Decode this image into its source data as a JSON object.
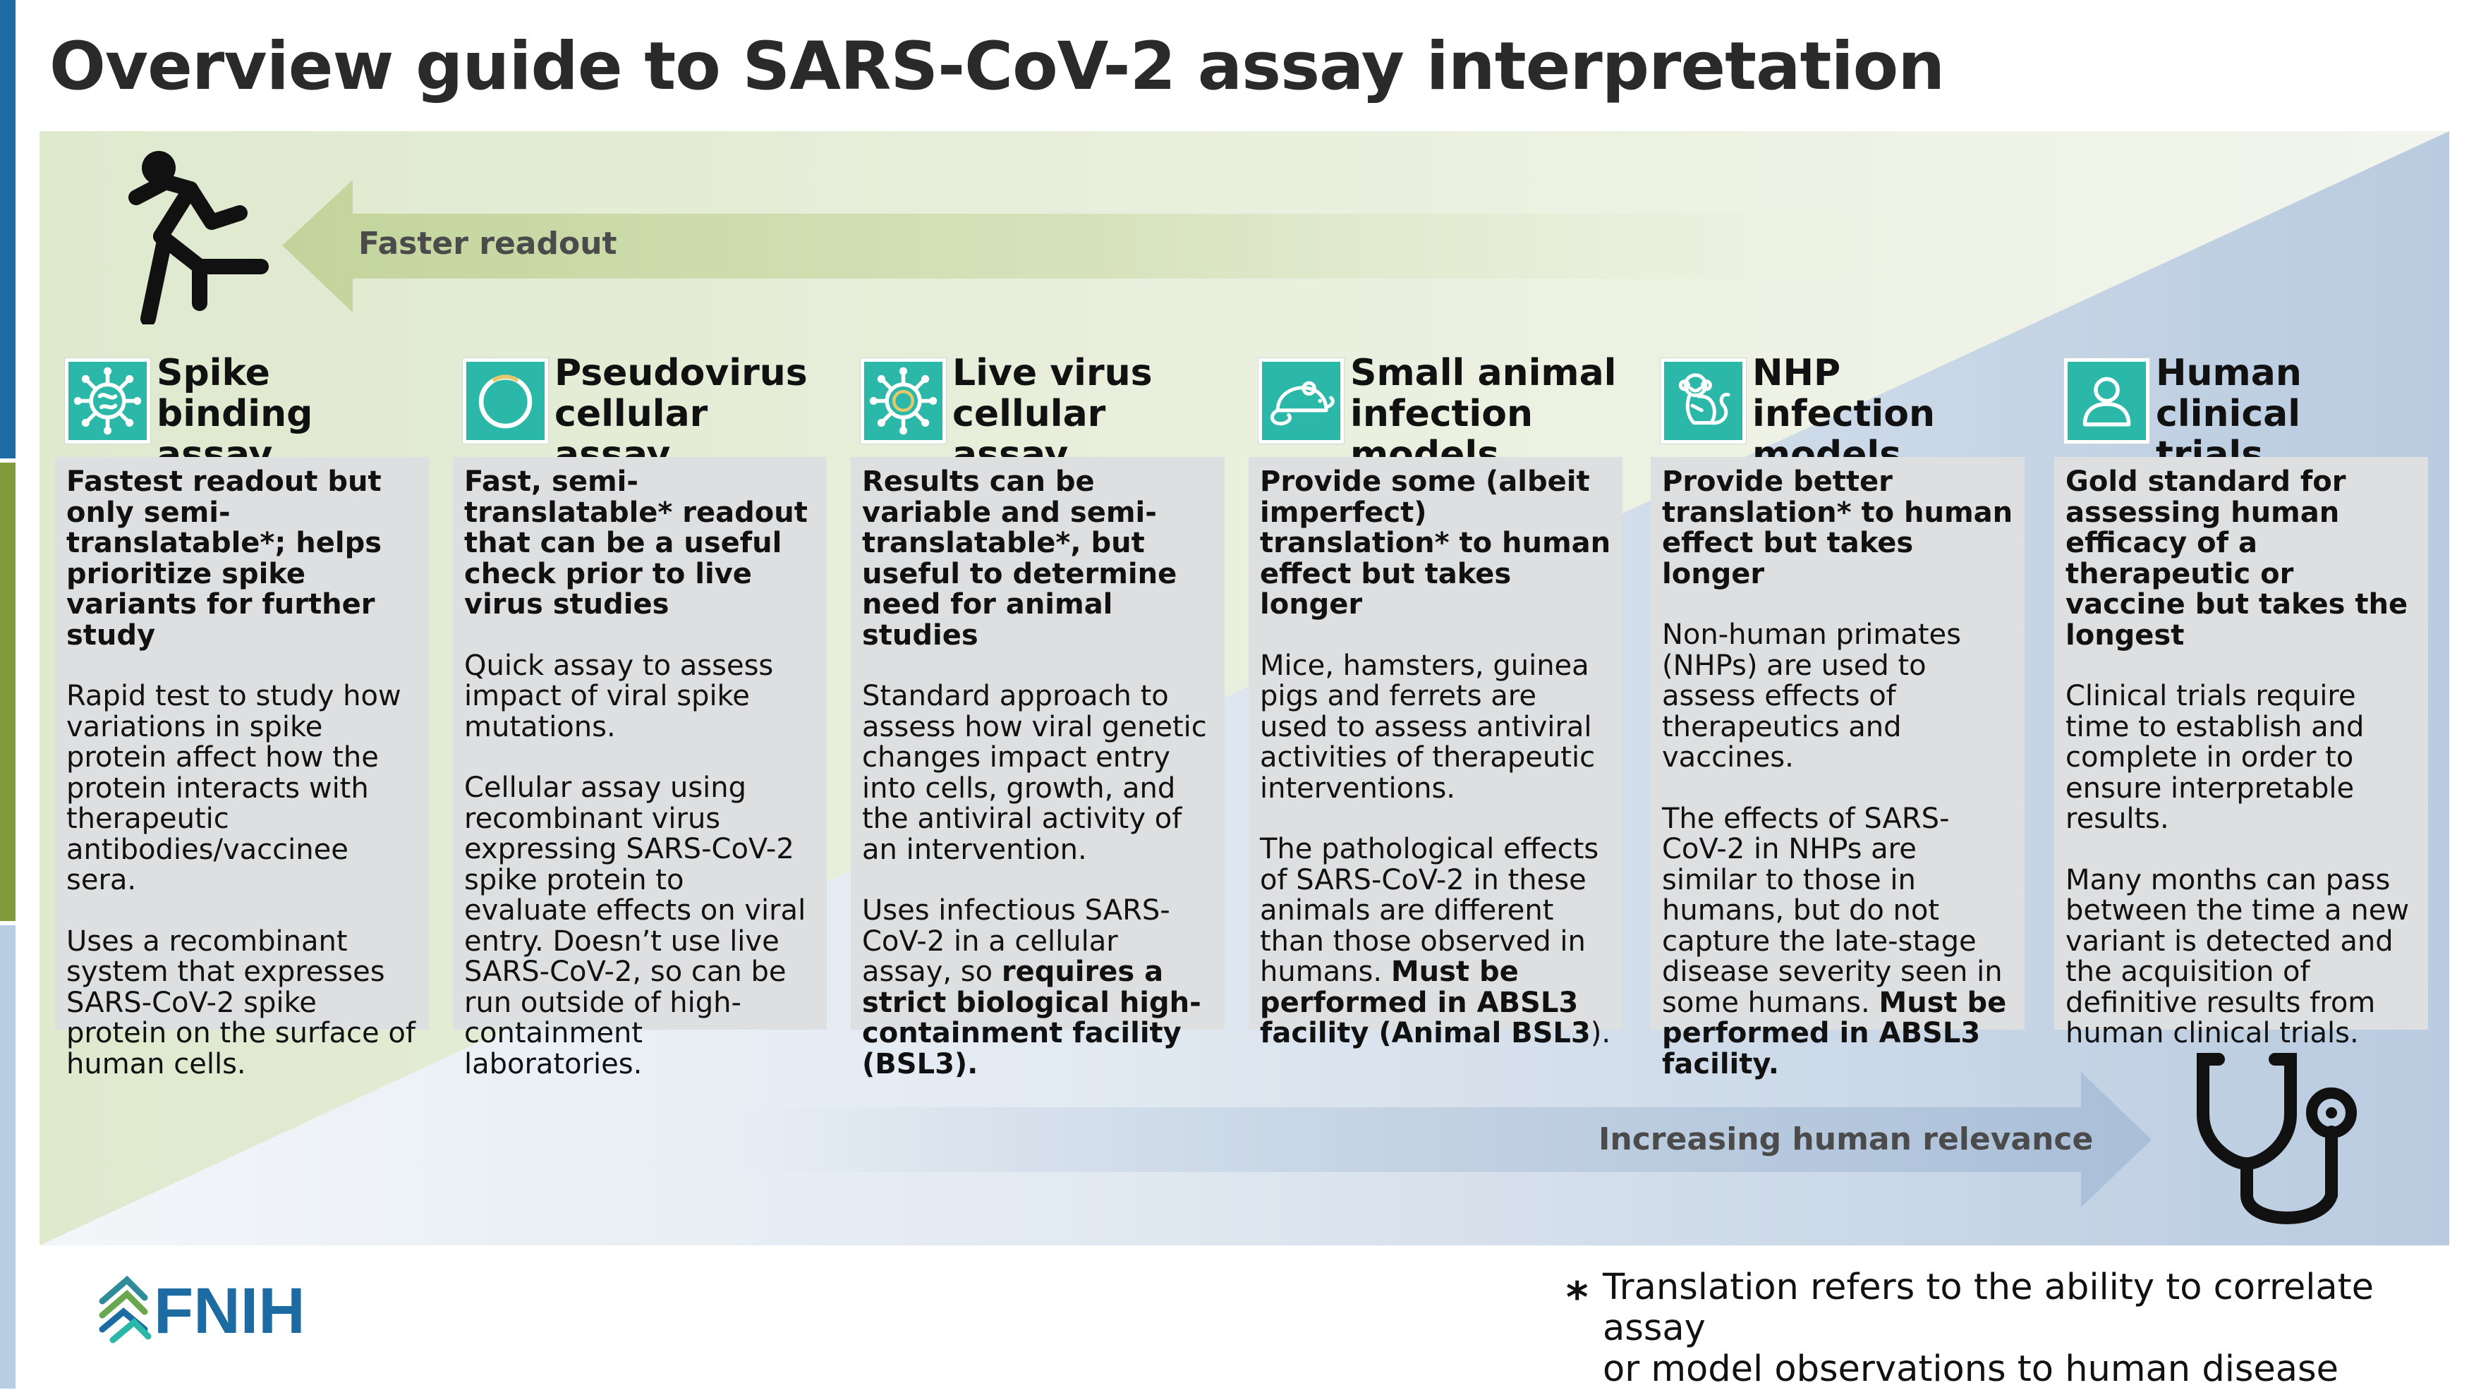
{
  "title": "Overview guide to SARS-CoV-2 assay interpretation",
  "colors": {
    "edge_blue": "#1d6ba3",
    "edge_green": "#7f9b3c",
    "edge_lightblue": "#b7cde3",
    "background_green": "#e6eed7",
    "background_blue": "#bfcfe2",
    "icon_teal": "#2cb8a8",
    "card_gray": "#dedfe0"
  },
  "arrows": {
    "left": {
      "label": "Faster readout",
      "icon": "running-person-icon"
    },
    "right": {
      "label": "Increasing human relevance",
      "icon": "stethoscope-icon"
    }
  },
  "columns": [
    {
      "icon": "coronavirus-icon",
      "title": "Spike binding\nassay",
      "lead": "Fastest readout but only semi-translatable*; helps prioritize spike variants for further study",
      "p1": "Rapid test to study how variations in spike protein affect how the protein interacts with therapeutic antibodies/vaccinee sera.",
      "p2": "Uses a recombinant system that expresses SARS-CoV-2 spike protein on the surface of human cells."
    },
    {
      "icon": "pseudovirus-icon",
      "title": "Pseudovirus\ncellular assay",
      "lead": "Fast, semi-translatable* readout that can be a useful check prior to live virus studies",
      "p1": "Quick assay to assess impact of viral spike mutations.",
      "p2": "Cellular assay using recombinant virus expressing SARS-CoV-2 spike protein to evaluate effects on viral entry. Doesn’t use live SARS-CoV-2, so can be run outside of high-containment laboratories."
    },
    {
      "icon": "live-virus-icon",
      "title": "Live virus\ncellular assay",
      "lead": "Results can be variable and semi-translatable*, but useful to determine need for animal studies",
      "p1": "Standard approach to assess how viral genetic changes impact entry into cells, growth, and the antiviral activity of an intervention.",
      "p2": "Uses infectious SARS-CoV-2 in a cellular assay, so ",
      "p2_bold": "requires a strict biological high-containment facility (BSL3)."
    },
    {
      "icon": "mouse-icon",
      "title": "Small animal\ninfection models",
      "lead": "Provide some (albeit imperfect) translation* to human effect but takes longer",
      "p1": "Mice, hamsters, guinea pigs and ferrets are used to assess antiviral activities of therapeutic interventions.",
      "p2": "The pathological effects of SARS-CoV-2 in these animals are different than those observed in humans. ",
      "p2_bold": "Must be performed in ABSL3 facility (Animal BSL3",
      "p2_after": ")."
    },
    {
      "icon": "monkey-icon",
      "title": "NHP infection\nmodels",
      "lead": "Provide better translation* to human effect but takes longer",
      "p1": "Non-human primates (NHPs) are used to assess effects of therapeutics and vaccines.",
      "p2": "The effects of SARS-CoV-2 in NHPs are similar to those in humans, but do not capture the late-stage disease severity seen in some humans. ",
      "p2_bold": "Must be performed in ABSL3 facility."
    },
    {
      "icon": "person-icon",
      "title": "Human clinical\ntrials",
      "lead": "Gold standard for assessing human efficacy of a therapeutic or vaccine but takes the longest",
      "p1": "Clinical trials require time to establish and complete in order to ensure interpretable results.",
      "p2": "Many months can pass between the time a new variant is detected and the acquisition of definitive results from human clinical trials."
    }
  ],
  "logo": {
    "text": "FNIH"
  },
  "footnote": {
    "star": "*",
    "text": "Translation refers to the ability to correlate assay\nor model observations to human disease"
  }
}
